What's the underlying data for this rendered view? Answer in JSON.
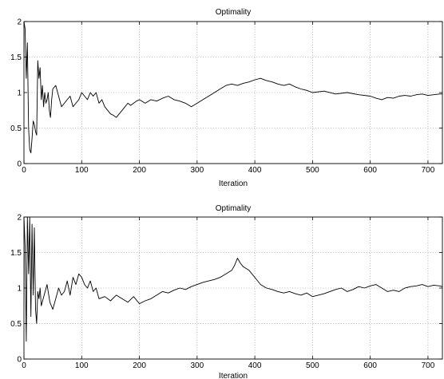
{
  "chart_data": [
    {
      "type": "line",
      "title": "Optimality",
      "xlabel": "Iteration",
      "ylabel": "",
      "xlim": [
        0,
        725
      ],
      "ylim": [
        0,
        2
      ],
      "grid": true,
      "x_ticks": [
        0,
        100,
        200,
        300,
        400,
        500,
        600,
        700
      ],
      "y_ticks": [
        0,
        0.5,
        1,
        1.5,
        2
      ],
      "x_tick_labels": [
        "0",
        "100",
        "200",
        "300",
        "400",
        "500",
        "600",
        "700"
      ],
      "y_tick_labels": [
        "0",
        "0.5",
        "1",
        "1.5",
        "2"
      ],
      "series": [
        {
          "color": "#000000",
          "x": [
            0,
            2,
            4,
            6,
            8,
            10,
            12,
            14,
            16,
            18,
            20,
            22,
            24,
            26,
            28,
            30,
            32,
            34,
            36,
            38,
            40,
            42,
            44,
            46,
            48,
            50,
            55,
            60,
            65,
            70,
            75,
            80,
            85,
            90,
            95,
            100,
            105,
            110,
            115,
            120,
            125,
            130,
            135,
            140,
            145,
            150,
            155,
            160,
            165,
            170,
            175,
            180,
            185,
            190,
            195,
            200,
            210,
            220,
            230,
            240,
            250,
            260,
            270,
            280,
            290,
            300,
            310,
            320,
            330,
            340,
            350,
            360,
            370,
            380,
            390,
            400,
            410,
            420,
            430,
            440,
            450,
            460,
            470,
            480,
            490,
            500,
            520,
            540,
            560,
            580,
            600,
            610,
            620,
            630,
            640,
            650,
            660,
            670,
            680,
            690,
            700,
            710,
            720,
            725
          ],
          "y": [
            2.0,
            1.9,
            1.2,
            1.7,
            0.5,
            0.2,
            0.15,
            0.35,
            0.6,
            0.55,
            0.45,
            0.4,
            1.45,
            1.2,
            1.35,
            0.9,
            1.1,
            0.8,
            1.0,
            0.85,
            0.9,
            1.0,
            0.75,
            0.65,
            0.9,
            1.05,
            1.1,
            0.95,
            0.8,
            0.85,
            0.9,
            0.95,
            0.8,
            0.85,
            0.9,
            1.0,
            0.95,
            0.9,
            1.0,
            0.95,
            1.0,
            0.85,
            0.9,
            0.8,
            0.75,
            0.7,
            0.68,
            0.65,
            0.7,
            0.75,
            0.8,
            0.85,
            0.82,
            0.85,
            0.88,
            0.9,
            0.85,
            0.9,
            0.88,
            0.92,
            0.95,
            0.9,
            0.88,
            0.85,
            0.8,
            0.85,
            0.9,
            0.95,
            1.0,
            1.05,
            1.1,
            1.12,
            1.1,
            1.13,
            1.15,
            1.18,
            1.2,
            1.17,
            1.15,
            1.12,
            1.1,
            1.12,
            1.08,
            1.05,
            1.03,
            1.0,
            1.02,
            0.98,
            1.0,
            0.97,
            0.95,
            0.92,
            0.9,
            0.93,
            0.92,
            0.95,
            0.96,
            0.95,
            0.97,
            0.98,
            0.96,
            0.97,
            0.98,
            0.98
          ]
        }
      ]
    },
    {
      "type": "line",
      "title": "Optimality",
      "xlabel": "Iteration",
      "ylabel": "",
      "xlim": [
        0,
        725
      ],
      "ylim": [
        0,
        2
      ],
      "grid": true,
      "x_ticks": [
        0,
        100,
        200,
        300,
        400,
        500,
        600,
        700
      ],
      "y_ticks": [
        0,
        0.5,
        1,
        1.5,
        2
      ],
      "x_tick_labels": [
        "0",
        "100",
        "200",
        "300",
        "400",
        "500",
        "600",
        "700"
      ],
      "y_tick_labels": [
        "0",
        "0.5",
        "1",
        "1.5",
        "2"
      ],
      "series": [
        {
          "color": "#000000",
          "x": [
            0,
            2,
            4,
            6,
            8,
            10,
            12,
            14,
            16,
            18,
            20,
            22,
            24,
            26,
            28,
            30,
            35,
            40,
            45,
            50,
            55,
            60,
            65,
            70,
            75,
            80,
            85,
            90,
            95,
            100,
            105,
            110,
            115,
            120,
            125,
            130,
            140,
            150,
            160,
            170,
            180,
            190,
            200,
            210,
            220,
            230,
            240,
            250,
            260,
            270,
            280,
            290,
            300,
            310,
            320,
            330,
            340,
            350,
            360,
            365,
            370,
            375,
            380,
            390,
            400,
            410,
            420,
            430,
            440,
            450,
            460,
            470,
            480,
            490,
            500,
            510,
            520,
            530,
            540,
            550,
            560,
            570,
            580,
            590,
            600,
            610,
            620,
            630,
            640,
            650,
            660,
            670,
            680,
            690,
            700,
            710,
            720,
            725
          ],
          "y": [
            2.0,
            1.6,
            0.25,
            2.0,
            1.2,
            2.0,
            0.6,
            1.9,
            0.9,
            1.85,
            0.7,
            0.5,
            0.95,
            0.85,
            1.0,
            0.75,
            0.9,
            1.05,
            0.8,
            0.7,
            0.85,
            1.0,
            0.9,
            0.95,
            1.1,
            0.9,
            1.15,
            1.05,
            1.2,
            1.15,
            1.05,
            1.0,
            1.1,
            0.95,
            1.0,
            0.85,
            0.88,
            0.82,
            0.9,
            0.85,
            0.8,
            0.88,
            0.78,
            0.82,
            0.85,
            0.9,
            0.95,
            0.93,
            0.97,
            1.0,
            0.98,
            1.02,
            1.05,
            1.08,
            1.1,
            1.12,
            1.15,
            1.2,
            1.25,
            1.32,
            1.42,
            1.35,
            1.3,
            1.25,
            1.15,
            1.05,
            1.0,
            0.98,
            0.95,
            0.93,
            0.95,
            0.92,
            0.9,
            0.93,
            0.88,
            0.9,
            0.92,
            0.95,
            0.98,
            1.0,
            0.95,
            0.98,
            1.02,
            1.0,
            1.03,
            1.05,
            1.0,
            0.95,
            0.97,
            0.95,
            1.0,
            1.02,
            1.03,
            1.05,
            1.02,
            1.04,
            1.03,
            1.02
          ]
        }
      ]
    }
  ]
}
